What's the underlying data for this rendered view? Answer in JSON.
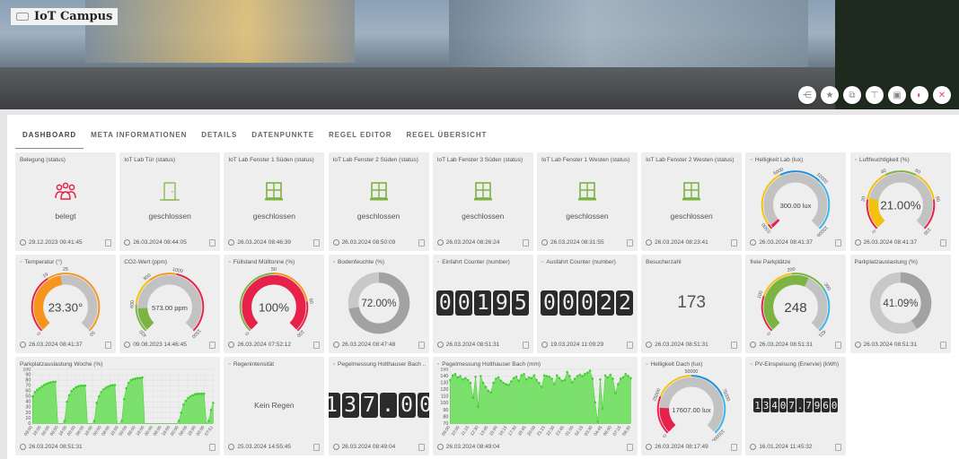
{
  "app": {
    "title": "IoT Campus"
  },
  "hero_actions": [
    {
      "name": "share-icon",
      "glyph": "⋲",
      "pink": false
    },
    {
      "name": "star-icon",
      "glyph": "★",
      "pink": false
    },
    {
      "name": "cubes-icon",
      "glyph": "⧉",
      "pink": false
    },
    {
      "name": "hierarchy-icon",
      "glyph": "⊤",
      "pink": false
    },
    {
      "name": "save-icon",
      "glyph": "▣",
      "pink": false
    },
    {
      "name": "toggle-icon",
      "glyph": "◐",
      "pink": true
    },
    {
      "name": "close-icon",
      "glyph": "✕",
      "pink": true
    }
  ],
  "tabs": [
    "DASHBOARD",
    "META INFORMATIONEN",
    "DETAILS",
    "DATENPUNKTE",
    "REGEL EDITOR",
    "REGEL ÜBERSICHT"
  ],
  "active_tab": "DASHBOARD",
  "colors": {
    "green": "#7cb342",
    "red": "#e8214a",
    "yellow": "#f4c20d",
    "orange": "#f7941d",
    "blue": "#1b8fd9",
    "lightblue": "#39b5ea",
    "gray": "#c2c2c2",
    "chart_green": "#66dd55"
  },
  "tiles": [
    {
      "title": "Belegung (status)",
      "type": "status",
      "icon": "users-icon",
      "color": "#e8214a",
      "text": "belegt",
      "timestamp": "29.12.2023 09:41:45"
    },
    {
      "title": "IoT Lab Tür (status)",
      "type": "status",
      "icon": "door-icon",
      "color": "#7cb342",
      "text": "geschlossen",
      "timestamp": "26.03.2024 08:44:05"
    },
    {
      "title": "IoT Lab Fenster 1 Süden (status)",
      "type": "status",
      "icon": "window-icon",
      "color": "#7cb342",
      "text": "geschlossen",
      "timestamp": "26.03.2024 08:46:39"
    },
    {
      "title": "IoT Lab Fenster 2 Süden (status)",
      "type": "status",
      "icon": "window-icon",
      "color": "#7cb342",
      "text": "geschlossen",
      "timestamp": "26.03.2024 08:50:09"
    },
    {
      "title": "IoT Lab Fenster 3 Süden (status)",
      "type": "status",
      "icon": "window-icon",
      "color": "#7cb342",
      "text": "geschlossen",
      "timestamp": "26.03.2024 08:26:24"
    },
    {
      "title": "IoT Lab Fenster 1 Westen (status)",
      "type": "status",
      "icon": "window-icon",
      "color": "#7cb342",
      "text": "geschlossen",
      "timestamp": "26.03.2024 08:31:55"
    },
    {
      "title": "IoT Lab Fenster 2 Westen (status)",
      "type": "status",
      "icon": "window-icon",
      "color": "#7cb342",
      "text": "geschlossen",
      "timestamp": "26.03.2024 08:23:41"
    },
    {
      "title": "Helligkeit Lab (lux)",
      "title_icon": "lightbulb-icon",
      "type": "gauge",
      "min": 0,
      "max": 15000,
      "value": 300,
      "display": "300.00 lux",
      "fill": "#e8214a",
      "bands": [
        [
          0,
          500,
          "#e8214a"
        ],
        [
          500,
          6000,
          "#f4c20d"
        ],
        [
          6000,
          10000,
          "#1b8fd9"
        ],
        [
          10000,
          15000,
          "#39b5ea"
        ]
      ],
      "ticks": [
        "0",
        "500",
        "6000",
        "10000",
        "15000"
      ],
      "tick_values": [
        0,
        500,
        6000,
        10000,
        15000
      ],
      "timestamp": "26.03.2024 08:41:37"
    },
    {
      "title": "Luftfeuchtigkeit (%)",
      "title_icon": "droplet-icon",
      "type": "gauge",
      "min": 0,
      "max": 100,
      "value": 21,
      "display": "21.00%",
      "fill": "#f4c20d",
      "bands": [
        [
          0,
          20,
          "#e8214a"
        ],
        [
          20,
          40,
          "#f4c20d"
        ],
        [
          40,
          60,
          "#7cb342"
        ],
        [
          60,
          80,
          "#f4c20d"
        ],
        [
          80,
          100,
          "#e8214a"
        ]
      ],
      "ticks": [
        "0",
        "20",
        "40",
        "60",
        "80",
        "100"
      ],
      "tick_values": [
        0,
        20,
        40,
        60,
        80,
        100
      ],
      "timestamp": "26.03.2024 08:41:37"
    },
    {
      "title": "Temperatur (°)",
      "title_icon": "thermometer-icon",
      "type": "gauge",
      "min": 0,
      "max": 50,
      "value": 23.3,
      "display": "23.30°",
      "fill": "#f7941d",
      "bands": [
        [
          0,
          19,
          "#e8214a"
        ],
        [
          19,
          50,
          "#f7941d"
        ]
      ],
      "ticks": [
        "0",
        "19",
        "25",
        "50"
      ],
      "tick_values": [
        0,
        19,
        25,
        50
      ],
      "timestamp": "26.03.2024 08:41:37"
    },
    {
      "title": "CO2-Wert (ppm)",
      "type": "gauge",
      "min": 400,
      "max": 1500,
      "value": 573,
      "display": "573.00 ppm",
      "fill": "#7cb342",
      "bands": [
        [
          400,
          600,
          "#7cb342"
        ],
        [
          600,
          800,
          "#f4c20d"
        ],
        [
          800,
          1000,
          "#f7941d"
        ],
        [
          1000,
          1500,
          "#e8214a"
        ]
      ],
      "ticks": [
        "400",
        "600",
        "800",
        "1000",
        "1500"
      ],
      "tick_values": [
        400,
        600,
        800,
        1000,
        1500
      ],
      "timestamp": "09.08.2023 14:46:45"
    },
    {
      "title": "Füllstand Mülltonne (%)",
      "title_icon": "bin-icon",
      "type": "gauge",
      "min": 0,
      "max": 100,
      "value": 100,
      "display": "100%",
      "fill": "#e8214a",
      "bands": [
        [
          0,
          50,
          "#7cb342"
        ],
        [
          50,
          80,
          "#f7941d"
        ],
        [
          80,
          100,
          "#e8214a"
        ]
      ],
      "ticks": [
        "0",
        "50",
        "80",
        "100"
      ],
      "tick_values": [
        0,
        50,
        80,
        100
      ],
      "timestamp": "26.03.2024 07:52:12"
    },
    {
      "title": "Bodenfeuchte (%)",
      "title_icon": "percent-icon",
      "type": "donut",
      "value": 72,
      "display": "72.00%",
      "timestamp": "26.03.2024 08:47:48"
    },
    {
      "title": "Einfahrt Counter (number)",
      "title_icon": "arrow-in-icon",
      "type": "counter",
      "value": "00195",
      "size": "l",
      "timestamp": "26.03.2024 08:51:31"
    },
    {
      "title": "Ausfahrt Counter (number)",
      "title_icon": "arrow-out-icon",
      "type": "counter",
      "value": "00022",
      "size": "l",
      "timestamp": "19.03.2024 11:09:29"
    },
    {
      "title": "Besucherzahl",
      "type": "big",
      "value": "173",
      "timestamp": "26.03.2024 08:51:31"
    },
    {
      "title": "freie Parkplätze",
      "type": "gauge",
      "min": 0,
      "max": 421,
      "value": 248,
      "display": "248",
      "fill": "#7cb342",
      "big": true,
      "bands": [
        [
          0,
          100,
          "#e8214a"
        ],
        [
          100,
          200,
          "#f4c20d"
        ],
        [
          200,
          300,
          "#7cb342"
        ],
        [
          300,
          421,
          "#39b5ea"
        ]
      ],
      "ticks": [
        "0",
        "100",
        "200",
        "300",
        "421"
      ],
      "tick_values": [
        0,
        100,
        200,
        300,
        421
      ],
      "timestamp": "26.03.2024 08:51:31"
    },
    {
      "title": "Parkplatzauslastung (%)",
      "type": "donut",
      "value": 41.09,
      "display": "41.09%",
      "timestamp": "26.03.2024 08:51:31"
    },
    {
      "title": "Parkplatzauslastung Woche (%)",
      "type": "chart",
      "timestamp": "26.03.2024 08:51:31",
      "chart": 0
    },
    {
      "title": "Regenintensität",
      "title_icon": "rain-icon",
      "type": "plain",
      "value": "Kein Regen",
      "timestamp": "25.03.2024 14:55:45"
    },
    {
      "title": "Pegelmessung Holthauser Bach ...",
      "title_icon": "water-level-icon",
      "type": "counter",
      "value": "137.00",
      "size": "l",
      "timestamp": "26.03.2024 08:49:04"
    },
    {
      "title": "Pegelmessung Holthauser Bach (mm)",
      "title_icon": "water-level-icon",
      "type": "chart",
      "timestamp": "26.03.2024 08:49:04",
      "chart": 1
    },
    {
      "title": "Helligkeit Dach (lux)",
      "title_icon": "sun-cloud-icon",
      "type": "gauge",
      "min": 0,
      "max": 100000,
      "value": 17607,
      "display": "17607.00 lux",
      "fill": "#e8214a",
      "bands": [
        [
          0,
          25000,
          "#e8214a"
        ],
        [
          25000,
          50000,
          "#f4c20d"
        ],
        [
          50000,
          75000,
          "#1b8fd9"
        ],
        [
          75000,
          100000,
          "#39b5ea"
        ]
      ],
      "ticks": [
        "0",
        "25000",
        "50000",
        "75000",
        "100000"
      ],
      "tick_values": [
        0,
        25000,
        50000,
        75000,
        100000
      ],
      "timestamp": "26.03.2024 08:17:49"
    },
    {
      "title": "PV-Einspeisung (Enervie) (kWh)",
      "title_icon": "solar-panel-icon",
      "type": "counter",
      "value": "13407.7960",
      "size": "s",
      "timestamp": "16.01.2024 11:45:32"
    }
  ],
  "chart_data": [
    {
      "type": "area",
      "title": "Parkplatzauslastung Woche (%)",
      "ylim": [
        0,
        100
      ],
      "yticks": [
        0,
        10,
        20,
        30,
        40,
        50,
        60,
        70,
        80,
        90,
        100
      ],
      "grid": true,
      "xticks": [
        "08:00",
        "16:00",
        "00:00",
        "08:00",
        "16:00",
        "00:00",
        "08:00",
        "16:00",
        "00:00",
        "08:00",
        "16:00",
        "00:00",
        "08:00",
        "16:00",
        "00:00",
        "08:00",
        "16:00",
        "00:00",
        "08:00",
        "16:00",
        "00:00",
        "07:51"
      ],
      "values": [
        50,
        58,
        62,
        65,
        68,
        71,
        73,
        75,
        76,
        77,
        77,
        0,
        0,
        0,
        5,
        40,
        52,
        60,
        64,
        67,
        69,
        70,
        70,
        70,
        0,
        0,
        0,
        5,
        38,
        50,
        58,
        63,
        66,
        68,
        70,
        71,
        71,
        0,
        0,
        5,
        45,
        65,
        75,
        80,
        82,
        83,
        84,
        84,
        85,
        0,
        0,
        0,
        0,
        0,
        0,
        0,
        0,
        0,
        0,
        0,
        0,
        0,
        0,
        0,
        5,
        20,
        35,
        42,
        47,
        50,
        52,
        54,
        55,
        55,
        55,
        55,
        0,
        5,
        25,
        38
      ]
    },
    {
      "type": "area",
      "title": "Pegelmessung Holthauser Bach (mm)",
      "ylim": [
        70,
        150
      ],
      "yticks": [
        70,
        80,
        90,
        100,
        110,
        120,
        130,
        140,
        150
      ],
      "grid": true,
      "xticks": [
        "09:00",
        "10:00",
        "11:15",
        "12:30",
        "13:45",
        "15:00",
        "16:15",
        "17:30",
        "18:45",
        "20:00",
        "21:15",
        "22:30",
        "23:45",
        "01:00",
        "02:15",
        "03:30",
        "04:45",
        "06:00",
        "07:15",
        "08:30"
      ],
      "values": [
        134,
        141,
        143,
        138,
        140,
        135,
        137,
        134,
        130,
        108,
        139,
        95,
        140,
        130,
        124,
        118,
        116,
        130,
        136,
        138,
        133,
        130,
        128,
        127,
        132,
        137,
        139,
        133,
        141,
        143,
        135,
        138,
        137,
        141,
        134,
        130,
        124,
        141,
        140,
        139,
        136,
        128,
        141,
        137,
        133,
        134,
        146,
        140,
        131,
        136,
        140,
        142,
        140,
        143,
        145,
        148,
        136,
        101,
        73,
        135,
        92,
        141,
        138,
        142,
        136,
        115,
        128,
        136,
        138,
        143,
        140,
        137
      ]
    }
  ]
}
